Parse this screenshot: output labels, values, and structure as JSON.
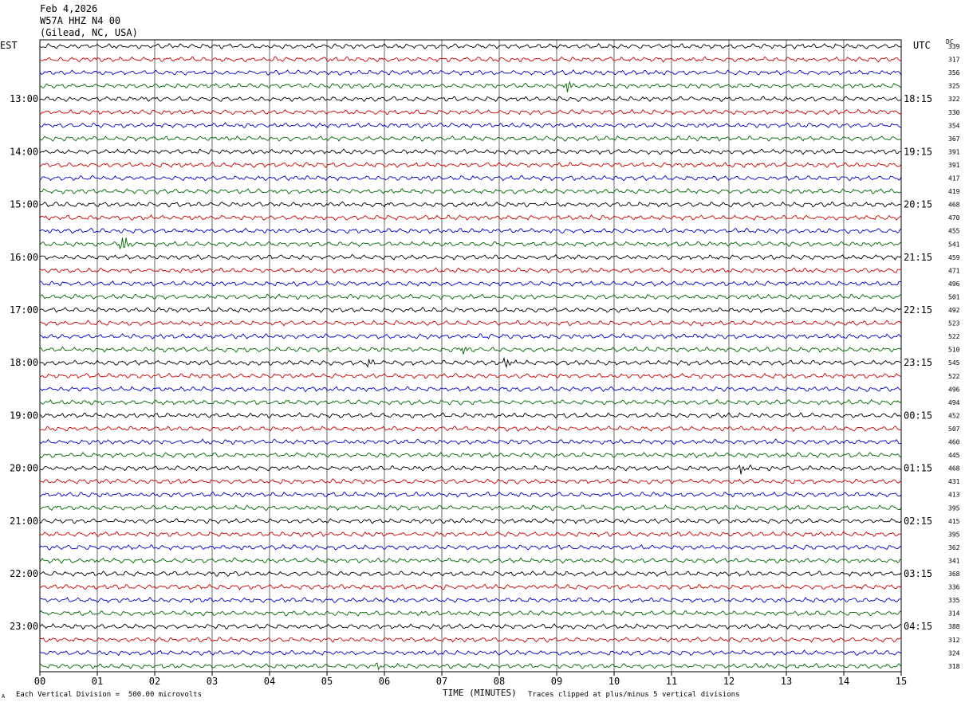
{
  "header": {
    "date": "Feb 4,2026",
    "station": "W57A HHZ N4 00",
    "location": "(Gilead, NC, USA)"
  },
  "labels": {
    "left_zone": "EST",
    "right_zone": "UTC",
    "dc": "DC"
  },
  "footer": {
    "scale": "Each Vertical Division =  500.00 microvolts",
    "xlabel": "TIME (MINUTES)",
    "clip_note": "Traces clipped at plus/minus 5 vertical divisions",
    "mark": "A"
  },
  "chart_data": {
    "type": "line",
    "title": "W57A HHZ N4 00",
    "xlabel": "TIME (MINUTES)",
    "xlim": [
      0,
      15
    ],
    "x_ticks": [
      "00",
      "01",
      "02",
      "03",
      "04",
      "05",
      "06",
      "07",
      "08",
      "09",
      "10",
      "11",
      "12",
      "13",
      "14",
      "15"
    ],
    "row_colors": [
      "#000000",
      "#cc0000",
      "#0000cc",
      "#006600"
    ],
    "rows_per_hour": 4,
    "left_hour_labels": [
      "13:00",
      "14:00",
      "15:00",
      "16:00",
      "17:00",
      "18:00",
      "19:00",
      "20:00",
      "21:00",
      "22:00",
      "23:00"
    ],
    "right_hour_labels": [
      "18:15",
      "19:15",
      "20:15",
      "21:15",
      "22:15",
      "23:15",
      "00:15",
      "01:15",
      "02:15",
      "03:15",
      "04:15"
    ],
    "dc_values": [
      "339",
      "317",
      "356",
      "325",
      "322",
      "330",
      "354",
      "367",
      "391",
      "391",
      "417",
      "419",
      "468",
      "470",
      "455",
      "541",
      "459",
      "471",
      "496",
      "501",
      "492",
      "523",
      "522",
      "510",
      "545",
      "522",
      "496",
      "494",
      "452",
      "507",
      "460",
      "445",
      "468",
      "431",
      "413",
      "395",
      "415",
      "395",
      "362",
      "341",
      "368",
      "336",
      "335",
      "314",
      "388",
      "312",
      "324",
      "318"
    ],
    "events": [
      {
        "row": 3,
        "minute": 9.15,
        "amp": 12
      },
      {
        "row": 15,
        "minute": 1.42,
        "amp": 18
      },
      {
        "row": 23,
        "minute": 7.35,
        "amp": 6
      },
      {
        "row": 24,
        "minute": 5.7,
        "amp": 8
      },
      {
        "row": 24,
        "minute": 8.1,
        "amp": 10
      },
      {
        "row": 32,
        "minute": 12.2,
        "amp": 9
      },
      {
        "row": 47,
        "minute": 5.85,
        "amp": 6
      }
    ],
    "grid": true
  }
}
